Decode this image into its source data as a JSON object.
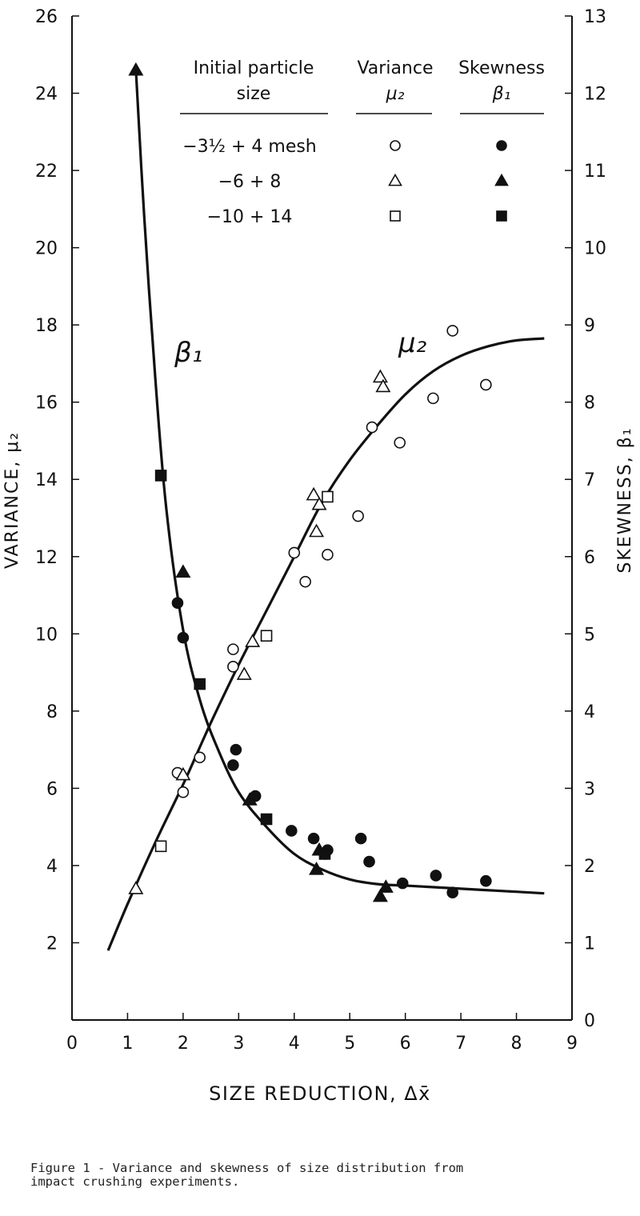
{
  "figure": {
    "caption": "Figure 1 - Variance and skewness of size distribution from\nimpact crushing experiments."
  },
  "chart_data": {
    "type": "scatter",
    "xlabel": "SIZE REDUCTION, Δx̄",
    "ylabel_left": "VARIANCE, μ₂",
    "ylabel_right": "SKEWNESS, β₁",
    "xlim": [
      0,
      9
    ],
    "ylim_left": [
      0,
      26
    ],
    "ylim_right": [
      0,
      13
    ],
    "x_ticks": [
      "0",
      "1",
      "2",
      "3",
      "4",
      "5",
      "6",
      "7",
      "8",
      "9"
    ],
    "y_left_ticks": [
      "2",
      "4",
      "6",
      "8",
      "10",
      "12",
      "14",
      "16",
      "18",
      "20",
      "22",
      "24",
      "26"
    ],
    "y_right_ticks": [
      "0",
      "1",
      "2",
      "3",
      "4",
      "5",
      "6",
      "7",
      "8",
      "9",
      "10",
      "11",
      "12",
      "13"
    ],
    "grid": false,
    "legend": {
      "position": "top-right",
      "col_headers": [
        "Initial particle\nsize",
        "Variance\nμ₂",
        "Skewness\nβ₁"
      ],
      "rows": [
        {
          "label": "−3½ + 4 mesh",
          "marker": "circle"
        },
        {
          "label": "−6 + 8",
          "marker": "triangle"
        },
        {
          "label": "−10 + 14",
          "marker": "square"
        }
      ]
    },
    "curve_labels": {
      "beta": "β₁",
      "mu": "μ₂"
    },
    "series": [
      {
        "name": "μ₂ −3½ + 4 mesh",
        "axis": "left",
        "marker": "circle",
        "filled": false,
        "x": [
          1.9,
          2.0,
          2.3,
          2.9,
          2.9,
          4.0,
          4.2,
          4.6,
          5.15,
          5.4,
          5.9,
          6.5,
          6.85,
          7.45
        ],
        "y": [
          6.4,
          5.9,
          6.8,
          9.6,
          9.15,
          12.1,
          11.35,
          12.05,
          13.05,
          15.35,
          14.95,
          16.1,
          17.85,
          16.45
        ]
      },
      {
        "name": "μ₂ −6 + 8",
        "axis": "left",
        "marker": "triangle",
        "filled": false,
        "x": [
          1.15,
          2.0,
          3.1,
          3.25,
          4.35,
          4.4,
          4.45,
          5.55,
          5.6
        ],
        "y": [
          3.4,
          6.35,
          8.95,
          9.8,
          13.6,
          12.65,
          13.35,
          16.65,
          16.4
        ]
      },
      {
        "name": "μ₂ −10 + 14",
        "axis": "left",
        "marker": "square",
        "filled": false,
        "x": [
          1.6,
          3.5,
          4.6
        ],
        "y": [
          4.5,
          9.95,
          13.55
        ]
      },
      {
        "name": "β₁ −3½ + 4 mesh",
        "axis": "right",
        "marker": "circle",
        "filled": true,
        "x": [
          1.9,
          2.0,
          2.9,
          2.95,
          3.3,
          3.95,
          4.35,
          4.55,
          4.6,
          5.2,
          5.35,
          5.95,
          6.55,
          6.85,
          7.45
        ],
        "y": [
          5.4,
          4.95,
          3.3,
          3.5,
          2.9,
          2.45,
          2.35,
          2.15,
          2.2,
          2.35,
          2.05,
          1.77,
          1.87,
          1.65,
          1.8
        ]
      },
      {
        "name": "β₁ −6 + 8",
        "axis": "right",
        "marker": "triangle",
        "filled": true,
        "x": [
          1.15,
          2.0,
          3.2,
          4.4,
          4.45,
          5.55,
          5.65
        ],
        "y": [
          12.3,
          5.8,
          2.85,
          1.95,
          2.2,
          1.6,
          1.72
        ]
      },
      {
        "name": "β₁ −10 + 14",
        "axis": "right",
        "marker": "square",
        "filled": true,
        "x": [
          1.6,
          2.3,
          3.5,
          4.55
        ],
        "y": [
          7.05,
          4.35,
          2.6,
          2.15
        ]
      }
    ],
    "fitted_curves": [
      {
        "name": "μ₂",
        "axis": "left",
        "x": [
          0.65,
          1.0,
          1.5,
          2.0,
          2.5,
          3.0,
          3.5,
          4.0,
          4.5,
          5.0,
          5.5,
          6.0,
          6.5,
          7.0,
          7.5,
          8.0,
          8.5
        ],
        "y": [
          1.8,
          3.0,
          4.6,
          6.1,
          7.7,
          9.2,
          10.6,
          12.0,
          13.4,
          14.5,
          15.4,
          16.2,
          16.8,
          17.2,
          17.45,
          17.6,
          17.65
        ]
      },
      {
        "name": "β₁",
        "axis": "right",
        "x": [
          1.15,
          1.3,
          1.5,
          1.7,
          2.0,
          2.3,
          2.6,
          3.0,
          3.5,
          4.0,
          4.5,
          5.0,
          5.5,
          6.0,
          7.0,
          8.0,
          8.5
        ],
        "y": [
          12.3,
          10.4,
          8.3,
          6.6,
          5.05,
          4.15,
          3.55,
          2.95,
          2.5,
          2.15,
          1.95,
          1.82,
          1.76,
          1.74,
          1.7,
          1.66,
          1.64
        ]
      }
    ]
  }
}
